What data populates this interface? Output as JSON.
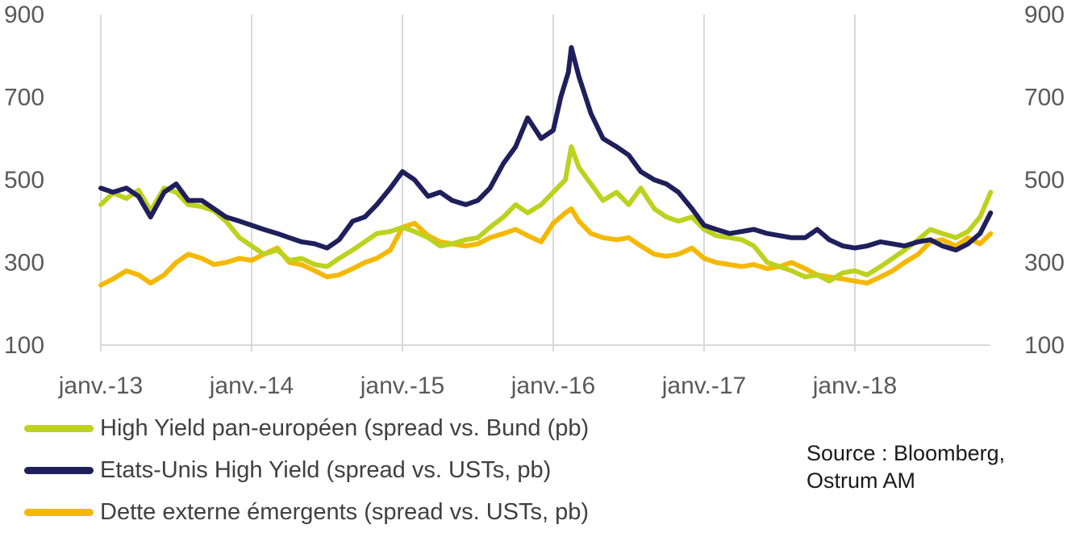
{
  "chart_data": {
    "type": "line",
    "title": "",
    "xlabel": "",
    "ylabel": "",
    "ylim": [
      100,
      900
    ],
    "y_ticks": [
      "100",
      "300",
      "500",
      "700",
      "900"
    ],
    "right_axis_ticks": [
      "100",
      "300",
      "500",
      "700",
      "900"
    ],
    "x_tick_labels": [
      "janv.-13",
      "janv.-14",
      "janv.-15",
      "janv.-16",
      "janv.-17",
      "janv.-18"
    ],
    "x_tick_values": [
      2013,
      2014,
      2015,
      2016,
      2017,
      2018
    ],
    "xlim": [
      2013,
      2018.9
    ],
    "grid": "vertical",
    "legend_position": "bottom-left",
    "series": [
      {
        "name": "High Yield pan-européen (spread vs. Bund (pb)",
        "color": "#bcd21e",
        "points": [
          [
            2013.0,
            440
          ],
          [
            2013.08,
            468
          ],
          [
            2013.17,
            455
          ],
          [
            2013.25,
            475
          ],
          [
            2013.33,
            425
          ],
          [
            2013.42,
            480
          ],
          [
            2013.5,
            470
          ],
          [
            2013.58,
            440
          ],
          [
            2013.67,
            435
          ],
          [
            2013.75,
            425
          ],
          [
            2013.83,
            400
          ],
          [
            2013.92,
            360
          ],
          [
            2014.0,
            340
          ],
          [
            2014.08,
            320
          ],
          [
            2014.17,
            330
          ],
          [
            2014.25,
            305
          ],
          [
            2014.33,
            310
          ],
          [
            2014.42,
            295
          ],
          [
            2014.5,
            290
          ],
          [
            2014.58,
            310
          ],
          [
            2014.67,
            330
          ],
          [
            2014.75,
            350
          ],
          [
            2014.83,
            370
          ],
          [
            2014.92,
            375
          ],
          [
            2015.0,
            385
          ],
          [
            2015.08,
            375
          ],
          [
            2015.17,
            360
          ],
          [
            2015.25,
            340
          ],
          [
            2015.33,
            345
          ],
          [
            2015.42,
            355
          ],
          [
            2015.5,
            360
          ],
          [
            2015.58,
            385
          ],
          [
            2015.67,
            410
          ],
          [
            2015.75,
            440
          ],
          [
            2015.83,
            420
          ],
          [
            2015.92,
            440
          ],
          [
            2016.0,
            470
          ],
          [
            2016.08,
            500
          ],
          [
            2016.12,
            580
          ],
          [
            2016.17,
            530
          ],
          [
            2016.25,
            490
          ],
          [
            2016.33,
            450
          ],
          [
            2016.42,
            470
          ],
          [
            2016.5,
            440
          ],
          [
            2016.58,
            480
          ],
          [
            2016.67,
            430
          ],
          [
            2016.75,
            410
          ],
          [
            2016.83,
            400
          ],
          [
            2016.92,
            410
          ],
          [
            2017.0,
            380
          ],
          [
            2017.08,
            365
          ],
          [
            2017.17,
            360
          ],
          [
            2017.25,
            355
          ],
          [
            2017.33,
            340
          ],
          [
            2017.42,
            300
          ],
          [
            2017.5,
            290
          ],
          [
            2017.58,
            280
          ],
          [
            2017.67,
            265
          ],
          [
            2017.75,
            270
          ],
          [
            2017.83,
            255
          ],
          [
            2017.92,
            275
          ],
          [
            2018.0,
            280
          ],
          [
            2018.08,
            270
          ],
          [
            2018.17,
            290
          ],
          [
            2018.25,
            310
          ],
          [
            2018.33,
            330
          ],
          [
            2018.42,
            355
          ],
          [
            2018.5,
            380
          ],
          [
            2018.58,
            370
          ],
          [
            2018.67,
            360
          ],
          [
            2018.75,
            375
          ],
          [
            2018.83,
            410
          ],
          [
            2018.9,
            470
          ]
        ]
      },
      {
        "name": "Etats-Unis  High Yield (spread vs. USTs, pb)",
        "color": "#1f1f5c",
        "points": [
          [
            2013.0,
            480
          ],
          [
            2013.08,
            470
          ],
          [
            2013.17,
            480
          ],
          [
            2013.25,
            460
          ],
          [
            2013.33,
            410
          ],
          [
            2013.42,
            470
          ],
          [
            2013.5,
            490
          ],
          [
            2013.58,
            450
          ],
          [
            2013.67,
            450
          ],
          [
            2013.75,
            430
          ],
          [
            2013.83,
            410
          ],
          [
            2013.92,
            400
          ],
          [
            2014.0,
            390
          ],
          [
            2014.08,
            380
          ],
          [
            2014.17,
            370
          ],
          [
            2014.25,
            360
          ],
          [
            2014.33,
            350
          ],
          [
            2014.42,
            345
          ],
          [
            2014.5,
            335
          ],
          [
            2014.58,
            355
          ],
          [
            2014.67,
            400
          ],
          [
            2014.75,
            410
          ],
          [
            2014.83,
            440
          ],
          [
            2014.92,
            480
          ],
          [
            2015.0,
            520
          ],
          [
            2015.08,
            500
          ],
          [
            2015.17,
            460
          ],
          [
            2015.25,
            470
          ],
          [
            2015.33,
            450
          ],
          [
            2015.42,
            440
          ],
          [
            2015.5,
            450
          ],
          [
            2015.58,
            480
          ],
          [
            2015.67,
            540
          ],
          [
            2015.75,
            580
          ],
          [
            2015.83,
            650
          ],
          [
            2015.92,
            600
          ],
          [
            2016.0,
            620
          ],
          [
            2016.05,
            700
          ],
          [
            2016.1,
            760
          ],
          [
            2016.12,
            820
          ],
          [
            2016.17,
            750
          ],
          [
            2016.25,
            660
          ],
          [
            2016.33,
            600
          ],
          [
            2016.42,
            580
          ],
          [
            2016.5,
            560
          ],
          [
            2016.58,
            520
          ],
          [
            2016.67,
            500
          ],
          [
            2016.75,
            490
          ],
          [
            2016.83,
            470
          ],
          [
            2016.92,
            430
          ],
          [
            2017.0,
            390
          ],
          [
            2017.08,
            380
          ],
          [
            2017.17,
            370
          ],
          [
            2017.25,
            375
          ],
          [
            2017.33,
            380
          ],
          [
            2017.42,
            370
          ],
          [
            2017.5,
            365
          ],
          [
            2017.58,
            360
          ],
          [
            2017.67,
            360
          ],
          [
            2017.75,
            380
          ],
          [
            2017.83,
            355
          ],
          [
            2017.92,
            340
          ],
          [
            2018.0,
            335
          ],
          [
            2018.08,
            340
          ],
          [
            2018.17,
            350
          ],
          [
            2018.25,
            345
          ],
          [
            2018.33,
            340
          ],
          [
            2018.42,
            350
          ],
          [
            2018.5,
            355
          ],
          [
            2018.58,
            340
          ],
          [
            2018.67,
            330
          ],
          [
            2018.75,
            345
          ],
          [
            2018.83,
            370
          ],
          [
            2018.9,
            420
          ]
        ]
      },
      {
        "name": "Dette externe émergents (spread vs. USTs, pb)",
        "color": "#f5b800",
        "points": [
          [
            2013.0,
            245
          ],
          [
            2013.08,
            260
          ],
          [
            2013.17,
            280
          ],
          [
            2013.25,
            270
          ],
          [
            2013.33,
            250
          ],
          [
            2013.42,
            270
          ],
          [
            2013.5,
            300
          ],
          [
            2013.58,
            320
          ],
          [
            2013.67,
            310
          ],
          [
            2013.75,
            295
          ],
          [
            2013.83,
            300
          ],
          [
            2013.92,
            310
          ],
          [
            2014.0,
            305
          ],
          [
            2014.08,
            320
          ],
          [
            2014.17,
            335
          ],
          [
            2014.25,
            300
          ],
          [
            2014.33,
            295
          ],
          [
            2014.42,
            280
          ],
          [
            2014.5,
            265
          ],
          [
            2014.58,
            270
          ],
          [
            2014.67,
            285
          ],
          [
            2014.75,
            300
          ],
          [
            2014.83,
            310
          ],
          [
            2014.92,
            330
          ],
          [
            2015.0,
            385
          ],
          [
            2015.08,
            395
          ],
          [
            2015.17,
            365
          ],
          [
            2015.25,
            350
          ],
          [
            2015.33,
            345
          ],
          [
            2015.42,
            340
          ],
          [
            2015.5,
            345
          ],
          [
            2015.58,
            360
          ],
          [
            2015.67,
            370
          ],
          [
            2015.75,
            380
          ],
          [
            2015.83,
            365
          ],
          [
            2015.92,
            350
          ],
          [
            2016.0,
            395
          ],
          [
            2016.08,
            420
          ],
          [
            2016.12,
            430
          ],
          [
            2016.17,
            400
          ],
          [
            2016.25,
            370
          ],
          [
            2016.33,
            360
          ],
          [
            2016.42,
            355
          ],
          [
            2016.5,
            360
          ],
          [
            2016.58,
            340
          ],
          [
            2016.67,
            320
          ],
          [
            2016.75,
            315
          ],
          [
            2016.83,
            320
          ],
          [
            2016.92,
            335
          ],
          [
            2017.0,
            310
          ],
          [
            2017.08,
            300
          ],
          [
            2017.17,
            295
          ],
          [
            2017.25,
            290
          ],
          [
            2017.33,
            295
          ],
          [
            2017.42,
            285
          ],
          [
            2017.5,
            290
          ],
          [
            2017.58,
            300
          ],
          [
            2017.67,
            285
          ],
          [
            2017.75,
            270
          ],
          [
            2017.83,
            265
          ],
          [
            2017.92,
            260
          ],
          [
            2018.0,
            255
          ],
          [
            2018.08,
            250
          ],
          [
            2018.17,
            265
          ],
          [
            2018.25,
            280
          ],
          [
            2018.33,
            300
          ],
          [
            2018.42,
            320
          ],
          [
            2018.5,
            350
          ],
          [
            2018.58,
            355
          ],
          [
            2018.67,
            340
          ],
          [
            2018.75,
            360
          ],
          [
            2018.83,
            345
          ],
          [
            2018.9,
            370
          ]
        ]
      }
    ]
  },
  "source_text": "Source : Bloomberg, Ostrum AM"
}
